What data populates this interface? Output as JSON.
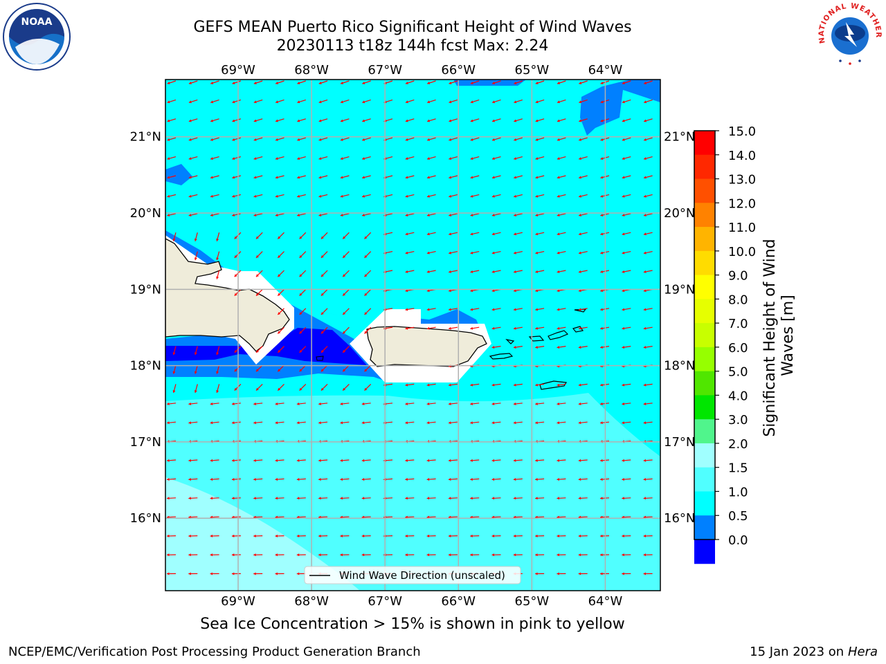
{
  "title": {
    "line1": "GEFS MEAN Puerto Rico Significant Height of Wind Waves",
    "line2": "20230113 t18z 144h fcst   Max: 2.24"
  },
  "logos": {
    "left": {
      "icon": "noaa-logo-icon",
      "text": "NOAA"
    },
    "right": {
      "icon": "nws-logo-icon",
      "text": "NATIONAL WEATHER SERVICE"
    }
  },
  "map": {
    "lon_labels": [
      "69°W",
      "68°W",
      "67°W",
      "66°W",
      "65°W",
      "64°W"
    ],
    "lon_values": [
      -69,
      -68,
      -67,
      -66,
      -65,
      -64
    ],
    "lat_labels": [
      "21°N",
      "20°N",
      "19°N",
      "18°N",
      "17°N",
      "16°N"
    ],
    "lat_values": [
      21,
      20,
      19,
      18,
      17,
      16
    ],
    "extent": {
      "lon": [
        -69.99,
        -63.25
      ],
      "lat": [
        15.05,
        21.75
      ]
    },
    "legend_label": "Wind Wave Direction (unscaled)",
    "arrow_color": "#ff0000",
    "land_color": "#efecda",
    "grid_color": "#b0b0b0"
  },
  "colorbar": {
    "label": "Significant Height of Wind Waves [m]",
    "ticks": [
      "15.0",
      "14.0",
      "13.0",
      "12.0",
      "11.0",
      "10.0",
      "9.0",
      "8.0",
      "7.0",
      "6.0",
      "5.0",
      "4.0",
      "3.0",
      "2.0",
      "1.5",
      "1.0",
      "0.5",
      "0.0"
    ],
    "colors": [
      "#ff0000",
      "#ff2800",
      "#ff5000",
      "#ff8200",
      "#ffb400",
      "#ffdc00",
      "#ffff00",
      "#e6ff00",
      "#c8ff00",
      "#96ff00",
      "#50e600",
      "#00e600",
      "#50f58c",
      "#a0ffff",
      "#50ffff",
      "#00ffff",
      "#0080ff",
      "#0000ff"
    ]
  },
  "sea_ice_note": "Sea Ice Concentration > 15% is shown in pink to yellow",
  "footer": {
    "left": "NCEP/EMC/Verification Post Processing Product Generation Branch",
    "date": "15 Jan 2023 on ",
    "host": "Hera"
  }
}
